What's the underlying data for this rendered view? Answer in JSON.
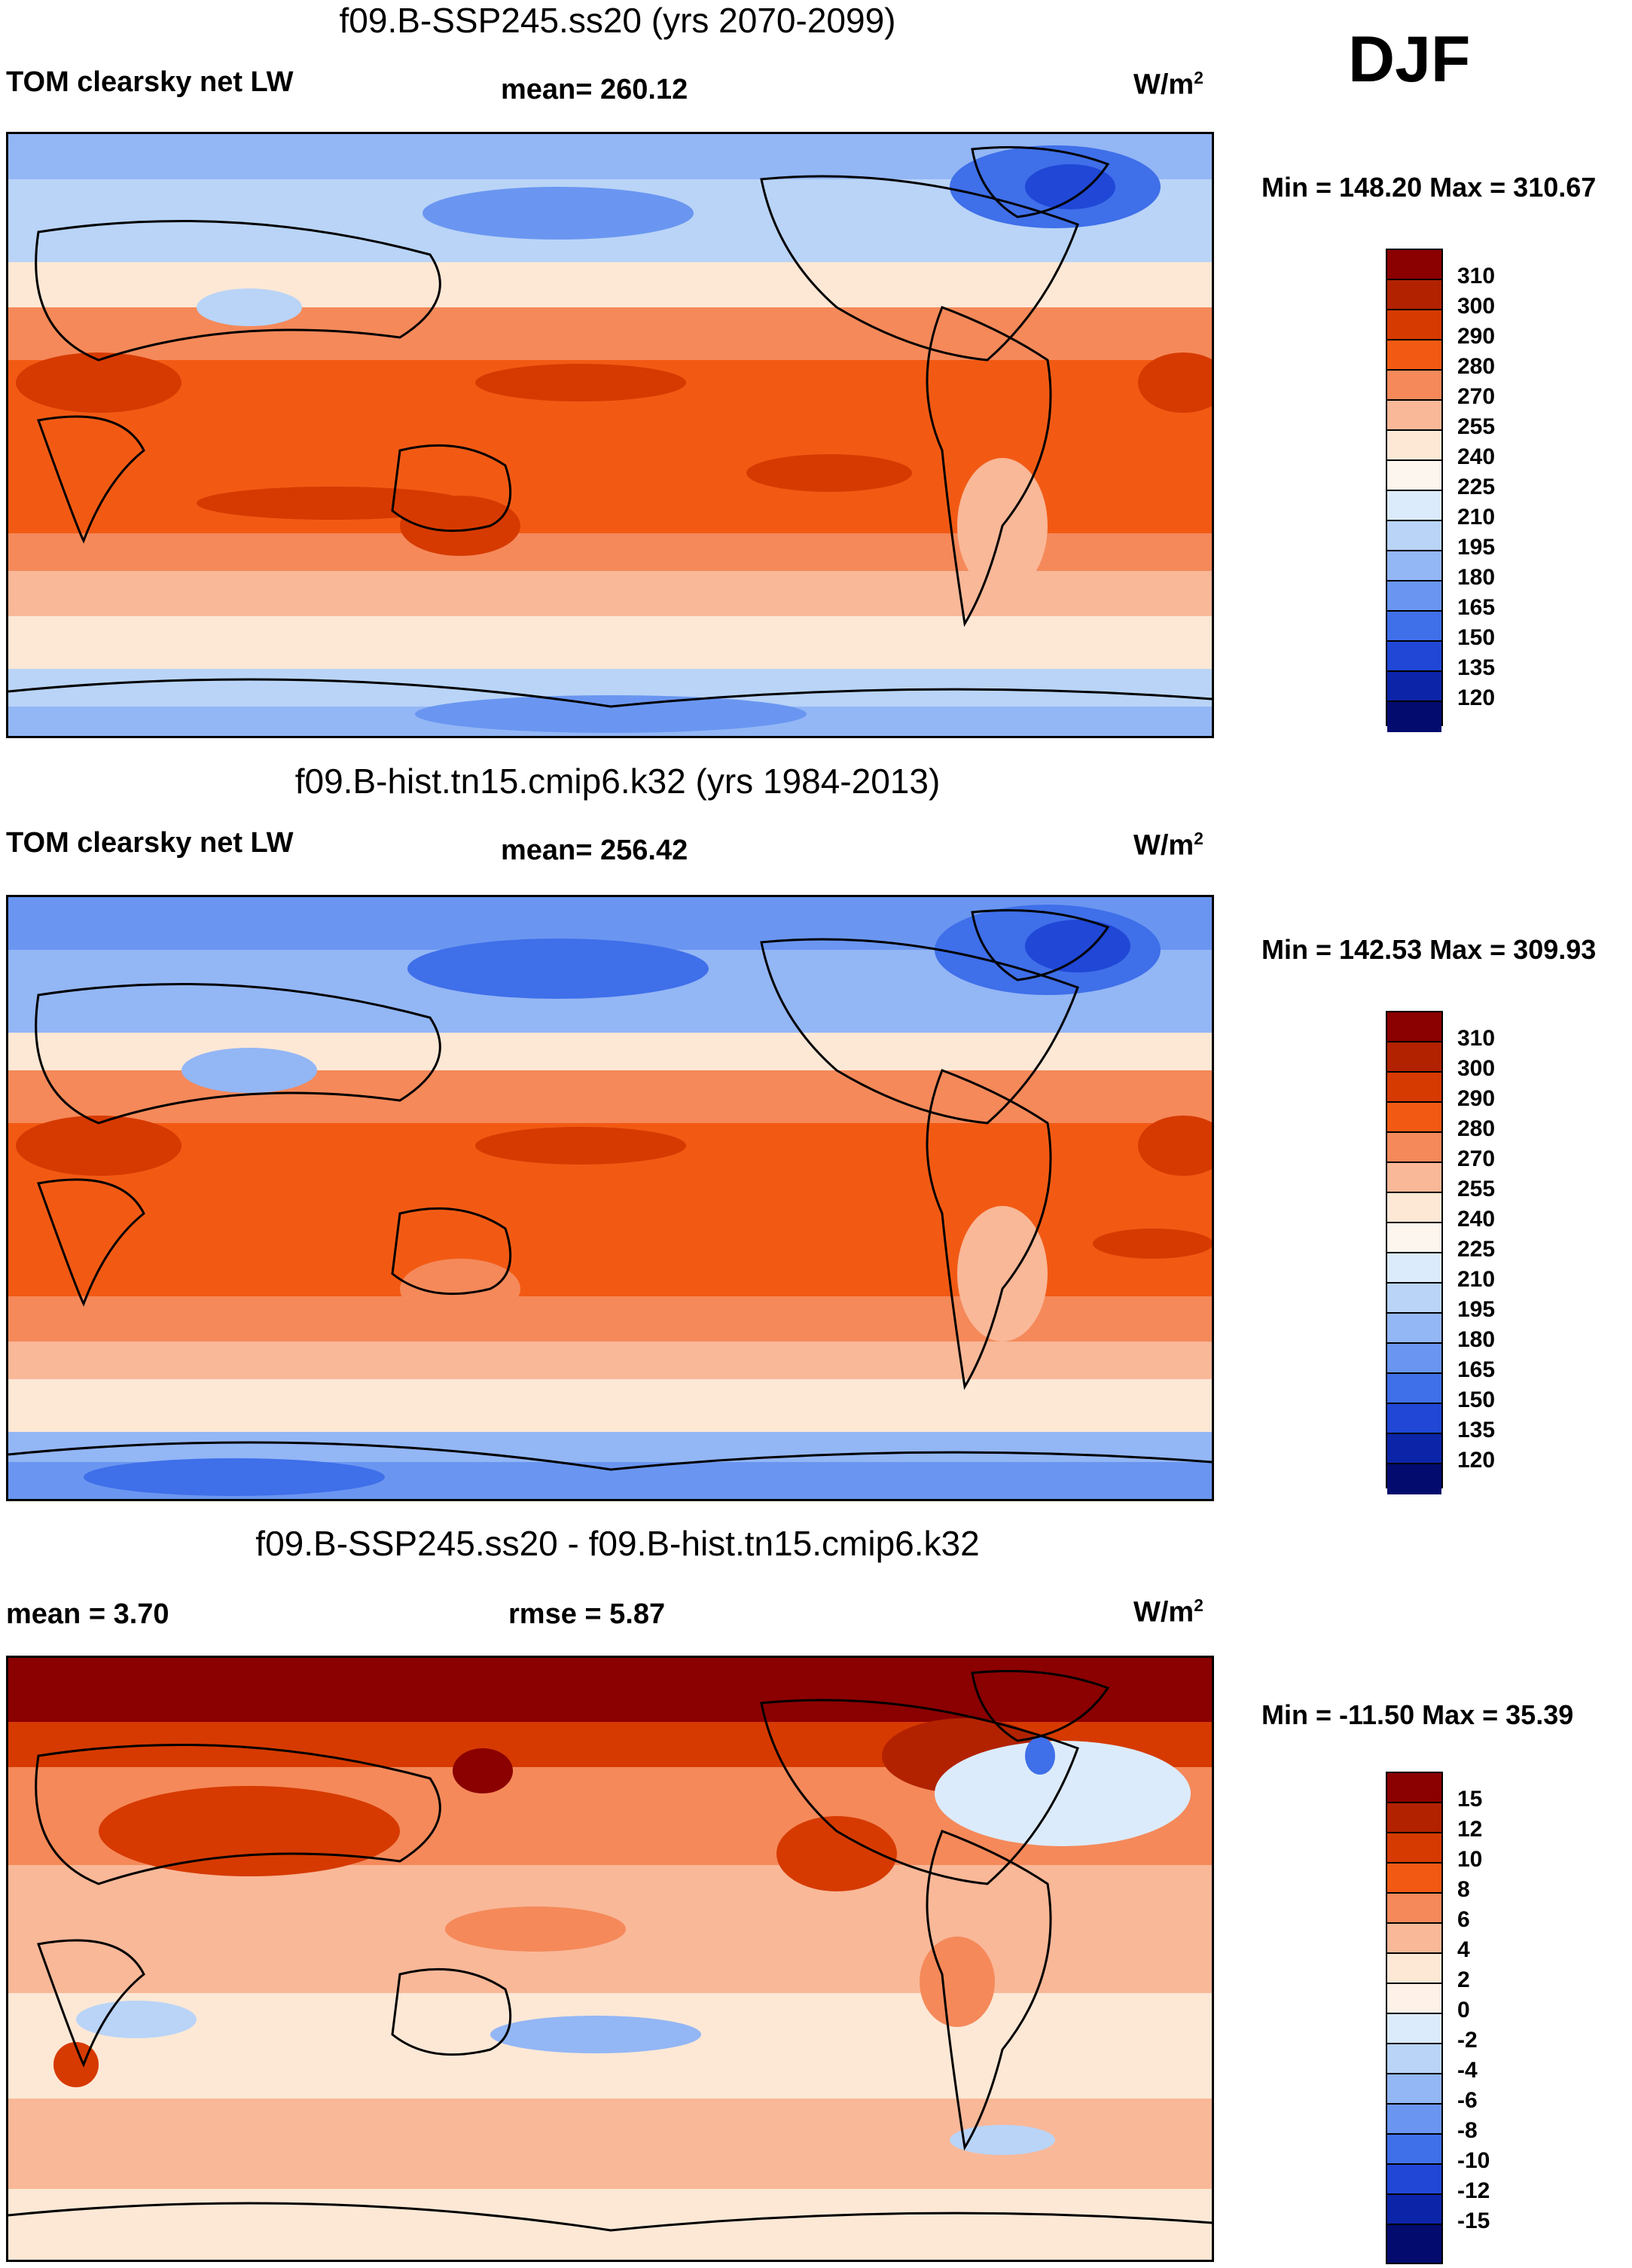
{
  "season": "DJF",
  "units_base": "W/m",
  "units_exp": "2",
  "panels": [
    {
      "title": "f09.B-SSP245.ss20 (yrs 2070-2099)",
      "left_label": "TOM clearsky net LW",
      "mean_label": "mean= 260.12",
      "minmax": "Min = 148.20 Max = 310.67",
      "colorbar": {
        "colors": [
          "#8b0000",
          "#b22200",
          "#d63a00",
          "#f25a14",
          "#f5895a",
          "#f9b898",
          "#fde8d6",
          "#dcebfb",
          "#b9d4f7",
          "#93b6f5",
          "#6a96f1",
          "#3f6fe9",
          "#2047d6",
          "#0c24a8",
          "#030b6e"
        ],
        "tick_labels": [
          "310",
          "300",
          "290",
          "280",
          "270",
          "255",
          "240",
          "225",
          "210",
          "195",
          "180",
          "165",
          "150",
          "135",
          "120"
        ]
      }
    },
    {
      "title": "f09.B-hist.tn15.cmip6.k32 (yrs 1984-2013)",
      "left_label": "TOM clearsky net LW",
      "mean_label": "mean= 256.42",
      "minmax": "Min = 142.53 Max = 309.93",
      "colorbar": {
        "colors": [
          "#8b0000",
          "#b22200",
          "#d63a00",
          "#f25a14",
          "#f5895a",
          "#f9b898",
          "#fde8d6",
          "#dcebfb",
          "#b9d4f7",
          "#93b6f5",
          "#6a96f1",
          "#3f6fe9",
          "#2047d6",
          "#0c24a8",
          "#030b6e"
        ],
        "tick_labels": [
          "310",
          "300",
          "290",
          "280",
          "270",
          "255",
          "240",
          "225",
          "210",
          "195",
          "180",
          "165",
          "150",
          "135",
          "120"
        ]
      }
    },
    {
      "title": "f09.B-SSP245.ss20 - f09.B-hist.tn15.cmip6.k32",
      "mean_label": "mean =    3.70",
      "rmse_label": "rmse =    5.87",
      "minmax": "Min = -11.50 Max =  35.39",
      "colorbar": {
        "colors": [
          "#8b0000",
          "#b22200",
          "#d63a00",
          "#f25a14",
          "#f5895a",
          "#f9b898",
          "#fde8d6",
          "#fdf1e8",
          "#dcebfb",
          "#b9d4f7",
          "#93b6f5",
          "#6a96f1",
          "#3f6fe9",
          "#2047d6",
          "#0c24a8",
          "#030b6e"
        ],
        "tick_labels": [
          "15",
          "12",
          "10",
          "8",
          "6",
          "4",
          "2",
          "0",
          "-2",
          "-4",
          "-6",
          "-8",
          "-10",
          "-12",
          "-15"
        ]
      }
    }
  ]
}
